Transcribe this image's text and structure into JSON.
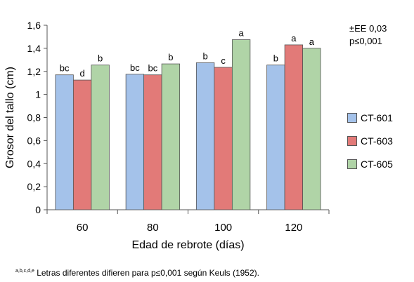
{
  "chart_data": {
    "type": "bar",
    "categories": [
      "60",
      "80",
      "100",
      "120"
    ],
    "series": [
      {
        "name": "CT-601",
        "color": "#a4c2ea",
        "values": [
          1.17,
          1.175,
          1.275,
          1.255
        ],
        "labels": [
          "bc",
          "bc",
          "b",
          "b"
        ]
      },
      {
        "name": "CT-603",
        "color": "#e27a78",
        "values": [
          1.125,
          1.17,
          1.235,
          1.43
        ],
        "labels": [
          "d",
          "bc",
          "c",
          "a"
        ]
      },
      {
        "name": "CT-605",
        "color": "#b0d4a7",
        "values": [
          1.255,
          1.265,
          1.475,
          1.4
        ],
        "labels": [
          "b",
          "b",
          "a",
          "a"
        ]
      }
    ],
    "xlabel": "Edad de rebrote (días)",
    "ylabel": "Grosor del tallo (cm)",
    "ylim": [
      0,
      1.6
    ],
    "yticks": [
      "0",
      "0,2",
      "0,4",
      "0,6",
      "0,8",
      "1",
      "1,2",
      "1,4",
      "1,6"
    ],
    "grid": false,
    "legend_position": "right"
  },
  "stats": {
    "se": "±EE 0,03",
    "p": "p≤0,001"
  },
  "footnote": {
    "superscript": "a,b,c,d,e",
    "text": " Letras diferentes difieren para p≤0,001 según Keuls (1952)."
  }
}
